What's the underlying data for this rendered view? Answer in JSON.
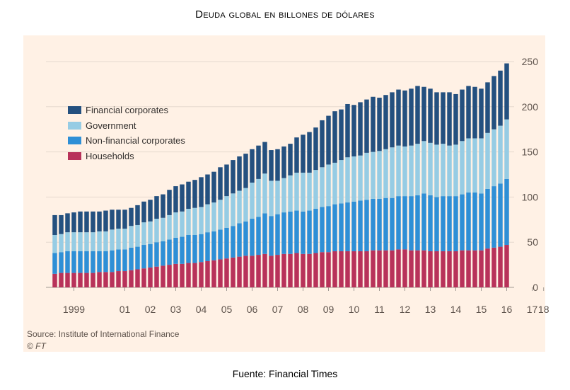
{
  "page_title": "Deuda global en billones de dólares",
  "caption": "Fuente: Financial Times",
  "chart_data": {
    "type": "bar",
    "stacked": true,
    "ylim": [
      0,
      250
    ],
    "yticks": [
      0,
      50,
      100,
      150,
      200,
      250
    ],
    "y_axis_position": "right",
    "grid": true,
    "legend_placement": "top-left",
    "x_tick_labels": [
      {
        "label": "1999",
        "bar": 3
      },
      {
        "label": "01",
        "bar": 11
      },
      {
        "label": "02",
        "bar": 15
      },
      {
        "label": "03",
        "bar": 19
      },
      {
        "label": "04",
        "bar": 23
      },
      {
        "label": "05",
        "bar": 27
      },
      {
        "label": "06",
        "bar": 31
      },
      {
        "label": "07",
        "bar": 35
      },
      {
        "label": "08",
        "bar": 39
      },
      {
        "label": "09",
        "bar": 43
      },
      {
        "label": "10",
        "bar": 47
      },
      {
        "label": "11",
        "bar": 51
      },
      {
        "label": "12",
        "bar": 55
      },
      {
        "label": "13",
        "bar": 59
      },
      {
        "label": "14",
        "bar": 63
      },
      {
        "label": "15",
        "bar": 67
      },
      {
        "label": "16",
        "bar": 71
      },
      {
        "label": "17",
        "bar": 75
      },
      {
        "label": "18",
        "bar": 76.8
      }
    ],
    "series": [
      {
        "name": "Households",
        "color": "#b8325a",
        "values": [
          15,
          16,
          16,
          16,
          16,
          16,
          16,
          17,
          17,
          17,
          18,
          18,
          19,
          20,
          21,
          22,
          23,
          24,
          25,
          26,
          26,
          27,
          27,
          28,
          29,
          30,
          31,
          32,
          33,
          34,
          35,
          35,
          36,
          37,
          35,
          36,
          37,
          37,
          38,
          37,
          37,
          38,
          39,
          39,
          40,
          40,
          40,
          40,
          40,
          40,
          41,
          41,
          41,
          41,
          42,
          42,
          41,
          41,
          41,
          40,
          40,
          40,
          40,
          40,
          41,
          41,
          41,
          41,
          43,
          44,
          45,
          47
        ]
      },
      {
        "name": "Non-financial corporates",
        "color": "#2e8fd6",
        "values": [
          23,
          23,
          24,
          24,
          24,
          24,
          24,
          23,
          23,
          24,
          24,
          24,
          25,
          25,
          26,
          26,
          27,
          27,
          28,
          29,
          30,
          31,
          31,
          31,
          32,
          32,
          33,
          34,
          35,
          37,
          38,
          41,
          42,
          45,
          44,
          45,
          46,
          47,
          47,
          47,
          48,
          49,
          50,
          51,
          52,
          53,
          54,
          55,
          56,
          57,
          57,
          57,
          58,
          58,
          59,
          59,
          60,
          61,
          63,
          62,
          60,
          61,
          61,
          61,
          62,
          64,
          64,
          63,
          66,
          68,
          70,
          73
        ]
      },
      {
        "name": "Government",
        "color": "#96cce4",
        "values": [
          20,
          20,
          21,
          21,
          21,
          21,
          21,
          22,
          22,
          23,
          23,
          23,
          24,
          24,
          25,
          25,
          26,
          26,
          27,
          28,
          28,
          29,
          30,
          30,
          31,
          32,
          33,
          35,
          36,
          36,
          37,
          40,
          42,
          44,
          39,
          37,
          38,
          40,
          42,
          43,
          42,
          43,
          44,
          46,
          46,
          48,
          50,
          50,
          50,
          52,
          52,
          53,
          54,
          56,
          56,
          55,
          56,
          57,
          58,
          58,
          58,
          58,
          56,
          57,
          59,
          60,
          60,
          61,
          62,
          63,
          64,
          66
        ]
      },
      {
        "name": "Financial corporates",
        "color": "#24507f",
        "values": [
          22,
          21,
          21,
          22,
          23,
          23,
          23,
          22,
          23,
          22,
          21,
          21,
          20,
          22,
          23,
          24,
          25,
          26,
          28,
          29,
          30,
          30,
          31,
          33,
          33,
          34,
          36,
          35,
          37,
          38,
          38,
          37,
          37,
          35,
          34,
          35,
          35,
          35,
          39,
          42,
          45,
          47,
          52,
          54,
          57,
          56,
          59,
          57,
          59,
          59,
          61,
          59,
          60,
          61,
          62,
          62,
          63,
          64,
          60,
          60,
          58,
          57,
          59,
          56,
          57,
          58,
          57,
          55,
          56,
          59,
          61,
          62
        ]
      }
    ]
  },
  "legend": [
    {
      "name": "Financial corporates",
      "color": "#24507f"
    },
    {
      "name": "Government",
      "color": "#96cce4"
    },
    {
      "name": "Non-financial corporates",
      "color": "#2e8fd6"
    },
    {
      "name": "Households",
      "color": "#b8325a"
    }
  ],
  "source": "Source: Institute of International Finance",
  "copyright": "© FT"
}
